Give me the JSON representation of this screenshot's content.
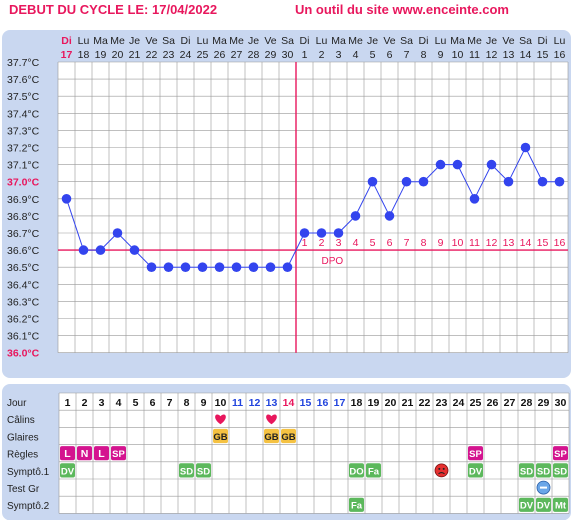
{
  "header": {
    "cycle_start": "DEBUT DU CYCLE LE: 17/04/2022",
    "site_credit": "Un outil du site www.enceinte.com"
  },
  "colors": {
    "accent": "#e8175d",
    "series": "#3344ee",
    "panel_bg": "#c9d7f0",
    "grid": "#999999",
    "number_blue": "#2244dd",
    "green": "#5cb85c",
    "magenta": "#d4148f",
    "gold": "#f5c242",
    "heart": "#e8175d"
  },
  "chart_data": {
    "type": "line",
    "title": "",
    "xlabel": "",
    "ylabel": "",
    "ylim": [
      36.0,
      37.7
    ],
    "y_ticks": [
      "37.7°C",
      "37.6°C",
      "37.5°C",
      "37.4°C",
      "37.3°C",
      "37.2°C",
      "37.1°C",
      "37.0°C",
      "36.9°C",
      "36.8°C",
      "36.7°C",
      "36.6°C",
      "36.5°C",
      "36.4°C",
      "36.3°C",
      "36.2°C",
      "36.1°C",
      "36.0°C"
    ],
    "highlight_ticks": [
      "37.0°C",
      "36.0°C"
    ],
    "weekdays": [
      "Di",
      "Lu",
      "Ma",
      "Me",
      "Je",
      "Ve",
      "Sa",
      "Di",
      "Lu",
      "Ma",
      "Me",
      "Je",
      "Ve",
      "Sa",
      "Di",
      "Lu",
      "Ma",
      "Me",
      "Je",
      "Ve",
      "Sa",
      "Di",
      "Lu",
      "Ma",
      "Me",
      "Je",
      "Ve",
      "Sa",
      "Di",
      "Lu"
    ],
    "dates": [
      "17",
      "18",
      "19",
      "20",
      "21",
      "22",
      "23",
      "24",
      "25",
      "26",
      "27",
      "28",
      "29",
      "30",
      "1",
      "2",
      "3",
      "4",
      "5",
      "6",
      "7",
      "8",
      "9",
      "10",
      "11",
      "12",
      "13",
      "14",
      "15",
      "16"
    ],
    "series": [
      {
        "values": [
          36.9,
          36.6,
          36.6,
          36.7,
          36.6,
          36.5,
          36.5,
          36.5,
          36.5,
          36.5,
          36.5,
          36.5,
          36.5,
          36.5,
          36.7,
          36.7,
          36.7,
          36.8,
          37.0,
          36.8,
          37.0,
          37.0,
          37.1,
          37.1,
          36.9,
          37.1,
          37.0,
          37.2,
          37.0,
          37.0
        ]
      }
    ],
    "coverline": 36.6,
    "ovulation_day_index": 13,
    "dpo_label": "DPO",
    "dpo_numbers": [
      "1",
      "2",
      "3",
      "4",
      "5",
      "6",
      "7",
      "8",
      "9",
      "10",
      "11",
      "12",
      "13",
      "14",
      "15",
      "16"
    ]
  },
  "symptoms_table": {
    "row_labels": [
      "Jour",
      "Câlins",
      "Glaires",
      "Règles",
      "Symptô.1",
      "Test Gr",
      "Symptô.2"
    ],
    "days": [
      "1",
      "2",
      "3",
      "4",
      "5",
      "6",
      "7",
      "8",
      "9",
      "10",
      "11",
      "12",
      "13",
      "14",
      "15",
      "16",
      "17",
      "18",
      "19",
      "20",
      "21",
      "22",
      "23",
      "24",
      "25",
      "26",
      "27",
      "28",
      "29",
      "30"
    ],
    "calins": [
      {
        "day": 10,
        "icon": "heart-icon"
      },
      {
        "day": 13,
        "icon": "heart-icon"
      }
    ],
    "glaires": [
      {
        "day": 10,
        "label": "GB"
      },
      {
        "day": 13,
        "label": "GB"
      },
      {
        "day": 14,
        "label": "GB"
      }
    ],
    "regles": [
      {
        "day": 1,
        "label": "L"
      },
      {
        "day": 2,
        "label": "N"
      },
      {
        "day": 3,
        "label": "L"
      },
      {
        "day": 4,
        "label": "SP"
      },
      {
        "day": 25,
        "label": "SP"
      },
      {
        "day": 30,
        "label": "SP"
      }
    ],
    "sympto1": [
      {
        "day": 1,
        "label": "DV"
      },
      {
        "day": 8,
        "label": "SD"
      },
      {
        "day": 9,
        "label": "SD"
      },
      {
        "day": 18,
        "label": "DO"
      },
      {
        "day": 19,
        "label": "Fa"
      },
      {
        "day": 23,
        "label": "",
        "icon": "sad-face-icon"
      },
      {
        "day": 25,
        "label": "DV"
      },
      {
        "day": 28,
        "label": "SD"
      },
      {
        "day": 29,
        "label": "SD"
      },
      {
        "day": 30,
        "label": "SD"
      }
    ],
    "test_gr": [
      {
        "day": 29,
        "icon": "negative-test-icon"
      }
    ],
    "sympto2": [
      {
        "day": 18,
        "label": "Fa"
      },
      {
        "day": 28,
        "label": "DV"
      },
      {
        "day": 29,
        "label": "DV"
      },
      {
        "day": 30,
        "label": "Mt"
      }
    ]
  }
}
